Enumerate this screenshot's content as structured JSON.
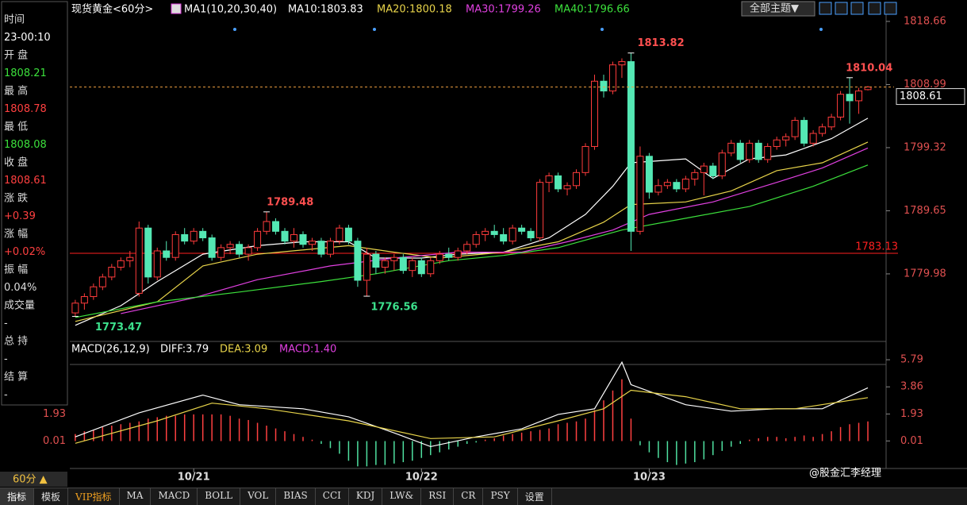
{
  "chart_data": [
    {
      "type": "candlestick",
      "title": "现货黄金<60分>",
      "indicator": "MA1(10,20,30,40)",
      "bull_color": "#ff3c3c",
      "bear_color": "#54e8b4",
      "xlim": [
        -0.6,
        89.0
      ],
      "ylim": [
        1769.63,
        1820.48
      ],
      "yticks": [
        1818.66,
        1808.99,
        1799.32,
        1789.65,
        1779.98
      ],
      "reference_line": 1783.13,
      "reference_color": "#ff2020",
      "candles": [
        [
          1774.0,
          1776.0,
          1773.47,
          1775.5
        ],
        [
          1775.5,
          1777.0,
          1774.5,
          1776.5
        ],
        [
          1776.5,
          1778.5,
          1776.0,
          1778.0
        ],
        [
          1778.0,
          1780.0,
          1777.5,
          1779.5
        ],
        [
          1779.5,
          1781.5,
          1779.0,
          1781.0
        ],
        [
          1781.0,
          1782.5,
          1780.5,
          1782.0
        ],
        [
          1782.0,
          1783.5,
          1781.0,
          1782.5
        ],
        [
          1777.0,
          1788.0,
          1776.5,
          1787.0
        ],
        [
          1787.0,
          1787.5,
          1778.5,
          1779.5
        ],
        [
          1779.5,
          1784.0,
          1779.0,
          1783.5
        ],
        [
          1783.5,
          1785.0,
          1782.0,
          1782.5
        ],
        [
          1782.5,
          1786.5,
          1782.0,
          1786.0
        ],
        [
          1786.0,
          1787.0,
          1784.5,
          1785.0
        ],
        [
          1785.0,
          1787.0,
          1784.5,
          1786.5
        ],
        [
          1786.5,
          1787.0,
          1785.0,
          1785.5
        ],
        [
          1785.5,
          1786.0,
          1782.0,
          1782.5
        ],
        [
          1782.5,
          1784.5,
          1782.0,
          1784.0
        ],
        [
          1784.0,
          1785.0,
          1783.0,
          1784.5
        ],
        [
          1784.5,
          1785.0,
          1782.5,
          1783.0
        ],
        [
          1783.0,
          1784.5,
          1782.0,
          1784.0
        ],
        [
          1784.0,
          1787.0,
          1783.5,
          1786.5
        ],
        [
          1786.5,
          1789.48,
          1786.0,
          1788.0
        ],
        [
          1788.0,
          1788.5,
          1786.0,
          1786.5
        ],
        [
          1786.5,
          1787.0,
          1784.5,
          1785.0
        ],
        [
          1785.0,
          1787.0,
          1784.0,
          1786.0
        ],
        [
          1786.0,
          1786.5,
          1784.0,
          1784.5
        ],
        [
          1784.5,
          1785.5,
          1783.5,
          1785.0
        ],
        [
          1785.0,
          1785.5,
          1782.5,
          1783.0
        ],
        [
          1783.0,
          1785.5,
          1782.5,
          1785.0
        ],
        [
          1785.0,
          1787.5,
          1784.5,
          1787.0
        ],
        [
          1787.0,
          1787.5,
          1784.5,
          1785.0
        ],
        [
          1785.0,
          1785.5,
          1778.0,
          1779.0
        ],
        [
          1779.0,
          1784.0,
          1776.56,
          1783.0
        ],
        [
          1783.0,
          1783.5,
          1780.0,
          1781.0
        ],
        [
          1781.0,
          1782.5,
          1780.0,
          1782.0
        ],
        [
          1782.0,
          1783.0,
          1780.5,
          1782.5
        ],
        [
          1782.5,
          1783.0,
          1780.0,
          1780.5
        ],
        [
          1780.5,
          1782.5,
          1779.5,
          1782.0
        ],
        [
          1782.0,
          1782.5,
          1779.5,
          1780.0
        ],
        [
          1780.0,
          1782.5,
          1779.5,
          1782.0
        ],
        [
          1782.0,
          1783.5,
          1781.5,
          1783.0
        ],
        [
          1783.0,
          1784.0,
          1782.0,
          1782.5
        ],
        [
          1782.5,
          1784.0,
          1782.0,
          1783.5
        ],
        [
          1783.5,
          1785.0,
          1783.0,
          1784.5
        ],
        [
          1784.5,
          1786.5,
          1784.0,
          1786.0
        ],
        [
          1786.0,
          1787.0,
          1785.0,
          1786.5
        ],
        [
          1786.5,
          1787.5,
          1785.5,
          1786.0
        ],
        [
          1786.0,
          1787.0,
          1784.5,
          1785.0
        ],
        [
          1785.0,
          1787.5,
          1784.5,
          1787.0
        ],
        [
          1787.0,
          1787.5,
          1786.0,
          1786.5
        ],
        [
          1786.5,
          1787.0,
          1785.0,
          1785.5
        ],
        [
          1785.5,
          1794.5,
          1785.0,
          1794.0
        ],
        [
          1794.0,
          1795.5,
          1792.5,
          1795.0
        ],
        [
          1795.0,
          1795.5,
          1792.5,
          1793.0
        ],
        [
          1793.0,
          1794.0,
          1792.0,
          1793.5
        ],
        [
          1793.5,
          1796.0,
          1793.0,
          1795.5
        ],
        [
          1795.5,
          1800.0,
          1795.0,
          1799.5
        ],
        [
          1799.5,
          1810.5,
          1799.0,
          1809.5
        ],
        [
          1809.5,
          1810.5,
          1807.0,
          1808.0
        ],
        [
          1808.0,
          1812.5,
          1807.5,
          1812.0
        ],
        [
          1812.0,
          1813.0,
          1810.0,
          1812.5
        ],
        [
          1812.5,
          1813.82,
          1783.5,
          1786.5
        ],
        [
          1786.5,
          1799.5,
          1786.0,
          1798.0
        ],
        [
          1798.0,
          1798.5,
          1791.5,
          1792.5
        ],
        [
          1792.5,
          1794.5,
          1792.0,
          1793.5
        ],
        [
          1793.5,
          1794.5,
          1793.0,
          1794.0
        ],
        [
          1794.0,
          1794.5,
          1792.5,
          1793.0
        ],
        [
          1793.0,
          1795.0,
          1792.5,
          1794.5
        ],
        [
          1794.5,
          1796.0,
          1793.5,
          1795.5
        ],
        [
          1795.5,
          1797.0,
          1792.0,
          1796.5
        ],
        [
          1796.5,
          1797.0,
          1794.5,
          1795.0
        ],
        [
          1795.0,
          1799.0,
          1794.5,
          1798.5
        ],
        [
          1798.5,
          1800.5,
          1798.0,
          1800.0
        ],
        [
          1800.0,
          1800.5,
          1797.0,
          1797.5
        ],
        [
          1797.5,
          1800.5,
          1797.0,
          1800.0
        ],
        [
          1800.0,
          1800.5,
          1797.0,
          1797.5
        ],
        [
          1797.5,
          1800.0,
          1797.0,
          1799.5
        ],
        [
          1799.5,
          1801.0,
          1799.0,
          1800.5
        ],
        [
          1800.5,
          1801.5,
          1799.5,
          1801.0
        ],
        [
          1801.0,
          1804.0,
          1800.5,
          1803.5
        ],
        [
          1803.5,
          1804.0,
          1799.5,
          1800.0
        ],
        [
          1800.0,
          1802.0,
          1799.5,
          1801.5
        ],
        [
          1801.5,
          1803.0,
          1801.0,
          1802.5
        ],
        [
          1802.5,
          1804.5,
          1802.0,
          1804.0
        ],
        [
          1804.0,
          1808.0,
          1803.5,
          1807.5
        ],
        [
          1807.5,
          1810.04,
          1803.0,
          1806.5
        ],
        [
          1806.5,
          1808.5,
          1804.5,
          1808.0
        ],
        [
          1808.21,
          1808.78,
          1808.08,
          1808.61
        ]
      ],
      "ma": [
        {
          "label": "MA10:1803.83",
          "color": "#ffffff",
          "x": [
            0,
            5,
            9,
            14,
            20,
            25,
            30,
            33,
            38,
            42,
            47,
            52,
            56,
            59,
            61,
            67,
            70,
            74,
            78,
            83,
            87
          ],
          "values": [
            1772.1,
            1775.1,
            1778.8,
            1783.0,
            1784.3,
            1784.9,
            1784.9,
            1782.4,
            1782.4,
            1783.0,
            1783.3,
            1785.5,
            1789.1,
            1793.4,
            1797.0,
            1797.6,
            1794.6,
            1797.6,
            1798.2,
            1800.7,
            1803.83
          ]
        },
        {
          "label": "MA20:1800.18",
          "color": "#e8d44a",
          "x": [
            0,
            9,
            14,
            20,
            30,
            35,
            40,
            47,
            53,
            58,
            61,
            67,
            72,
            77,
            82,
            87
          ],
          "values": [
            1772.7,
            1775.7,
            1781.2,
            1783.0,
            1784.3,
            1783.3,
            1782.4,
            1783.3,
            1784.9,
            1787.9,
            1790.6,
            1791.0,
            1792.7,
            1795.8,
            1797.0,
            1800.18
          ]
        },
        {
          "label": "MA30:1799.26",
          "color": "#e040e0",
          "x": [
            5,
            13,
            20,
            28,
            35,
            42,
            49,
            54,
            59,
            63,
            70,
            77,
            82,
            87
          ],
          "values": [
            1773.9,
            1776.3,
            1779.1,
            1781.2,
            1782.4,
            1783.3,
            1783.3,
            1784.9,
            1786.7,
            1789.1,
            1791.0,
            1794.0,
            1796.2,
            1799.26
          ]
        },
        {
          "label": "MA40:1796.66",
          "color": "#3ce03c",
          "x": [
            0,
            9,
            18,
            27,
            33,
            41,
            47,
            53,
            60,
            67,
            74,
            81,
            87
          ],
          "values": [
            1773.3,
            1775.7,
            1777.2,
            1778.8,
            1780.0,
            1782.0,
            1782.8,
            1784.0,
            1786.7,
            1788.5,
            1790.3,
            1793.4,
            1796.66
          ]
        }
      ]
    },
    {
      "type": "macd",
      "title": "MACD(26,12,9)",
      "xlim": [
        -0.6,
        89.0
      ],
      "ylim": [
        -1.95,
        5.85
      ],
      "yticks": [
        5.79,
        3.86,
        1.93,
        0.01
      ],
      "left_yticks": [
        1.93,
        0.01
      ],
      "xticks": [
        {
          "value": 13,
          "label": "10/21"
        },
        {
          "value": 38,
          "label": "10/22"
        },
        {
          "value": 63,
          "label": "10/23"
        }
      ],
      "histogram": {
        "label": "MACD:1.40",
        "up_color": "#ff4040",
        "down_color": "#4fe0a0",
        "values": [
          0.5,
          0.7,
          0.8,
          1.0,
          1.1,
          1.2,
          1.3,
          1.4,
          1.6,
          1.7,
          1.8,
          1.8,
          1.9,
          1.9,
          1.9,
          1.9,
          1.9,
          1.8,
          1.6,
          1.5,
          1.3,
          1.1,
          0.9,
          0.7,
          0.5,
          0.3,
          0.1,
          -0.2,
          -0.5,
          -0.9,
          -1.4,
          -1.8,
          -1.8,
          -1.7,
          -1.7,
          -1.6,
          -1.5,
          -1.4,
          -1.2,
          -1.0,
          -0.8,
          -0.6,
          -0.4,
          -0.2,
          -0.1,
          0.1,
          0.2,
          0.4,
          0.5,
          0.6,
          0.7,
          0.8,
          0.9,
          1.2,
          1.3,
          1.4,
          1.6,
          2.2,
          2.9,
          3.6,
          4.4,
          1.6,
          -0.3,
          -0.8,
          -1.2,
          -1.5,
          -1.7,
          -1.6,
          -1.5,
          -1.3,
          -1.0,
          -0.7,
          -0.4,
          -0.2,
          0.1,
          0.2,
          0.3,
          0.3,
          0.2,
          0.3,
          0.4,
          0.3,
          0.5,
          0.7,
          1.0,
          1.2,
          1.3,
          1.4
        ]
      },
      "lines": [
        {
          "label": "DIFF:3.79",
          "color": "#ffffff",
          "x": [
            0,
            7,
            14,
            18,
            25,
            30,
            35,
            39,
            44,
            49,
            53,
            57,
            60,
            61,
            67,
            72,
            77,
            82,
            87
          ],
          "values": [
            0.3,
            2.01,
            3.27,
            2.59,
            2.3,
            1.73,
            0.58,
            -0.39,
            0.3,
            0.87,
            1.9,
            2.3,
            5.62,
            4.02,
            2.59,
            2.13,
            2.3,
            2.3,
            3.79
          ]
        },
        {
          "label": "DEA:3.09",
          "color": "#e8d44a",
          "x": [
            0,
            9,
            15,
            21,
            30,
            39,
            46,
            53,
            58,
            61,
            67,
            73,
            79,
            87
          ],
          "values": [
            -0.16,
            1.44,
            2.7,
            2.3,
            1.44,
            0.18,
            0.3,
            1.44,
            2.3,
            3.62,
            3.16,
            2.3,
            2.3,
            3.09
          ]
        }
      ]
    }
  ],
  "info_panel": [
    {
      "label": "时间",
      "value": "23-00:10",
      "color": "#ffffff"
    },
    {
      "label": "开 盘",
      "value": "1808.21",
      "color": "#3ce03c"
    },
    {
      "label": "最 高",
      "value": "1808.78",
      "color": "#ff4040"
    },
    {
      "label": "最 低",
      "value": "1808.08",
      "color": "#3ce03c"
    },
    {
      "label": "收 盘",
      "value": "1808.61",
      "color": "#ff4040"
    },
    {
      "label": "涨 跌",
      "value": "+0.39",
      "color": "#ff4040"
    },
    {
      "label": "涨 幅",
      "value": "+0.02%",
      "color": "#ff4040"
    },
    {
      "label": "振 幅",
      "value": "0.04%",
      "color": "#dddddd"
    },
    {
      "label": "成交量",
      "value": "-",
      "color": "#dddddd"
    },
    {
      "label": "总 持",
      "value": "-",
      "color": "#dddddd"
    },
    {
      "label": "结 算",
      "value": "-",
      "color": "#dddddd"
    }
  ],
  "toolbar": {
    "theme": "全部主题▼",
    "period": "60分 ▲"
  },
  "tabs": [
    "指标",
    "模板",
    "VIP指标",
    "MA",
    "MACD",
    "BOLL",
    "VOL",
    "BIAS",
    "CCI",
    "KDJ",
    "LW&",
    "RSI",
    "CR",
    "PSY",
    "设置"
  ],
  "watermark": "@股金汇李经理"
}
